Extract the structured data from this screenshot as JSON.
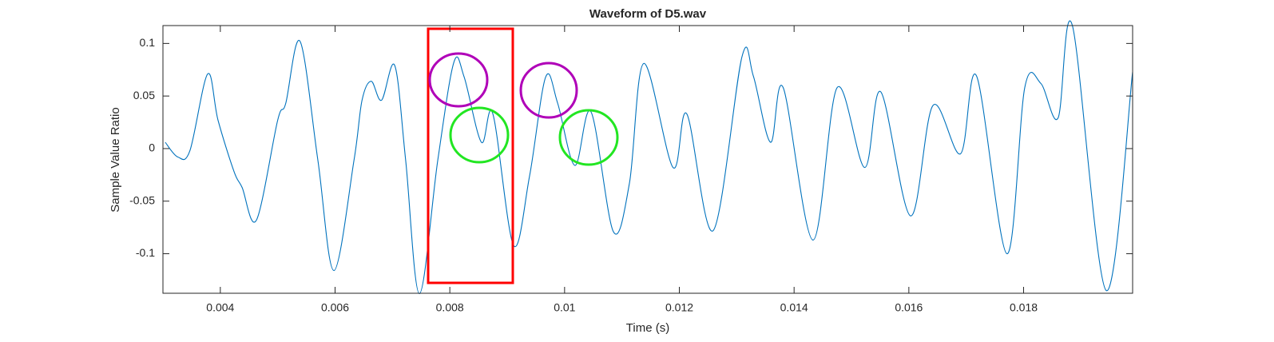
{
  "chart_data": {
    "type": "line",
    "title": "Waveform of D5.wav",
    "x_label": "Time (s)",
    "y_label": "Sample Value Ratio",
    "x": [
      0.00304,
      0.00326,
      0.00347,
      0.00378,
      0.00396,
      0.00424,
      0.00438,
      0.00463,
      0.005,
      0.00514,
      0.00539,
      0.0057,
      0.00598,
      0.00633,
      0.00647,
      0.00663,
      0.00681,
      0.00704,
      0.00723,
      0.00747,
      0.00779,
      0.00807,
      0.00825,
      0.00855,
      0.00875,
      0.00911,
      0.00939,
      0.00967,
      0.00988,
      0.01018,
      0.01046,
      0.01085,
      0.01113,
      0.01138,
      0.01189,
      0.01213,
      0.01259,
      0.01309,
      0.01329,
      0.01359,
      0.01381,
      0.01433,
      0.01475,
      0.01523,
      0.01551,
      0.01603,
      0.01642,
      0.0169,
      0.01718,
      0.01771,
      0.01802,
      0.0183,
      0.0186,
      0.01885,
      0.01944,
      0.0199
    ],
    "series": [
      {
        "name": "D5.wav",
        "color": "#0072BD",
        "values": [
          0.006,
          -0.008,
          -0.002,
          0.071,
          0.027,
          -0.022,
          -0.037,
          -0.068,
          0.027,
          0.043,
          0.102,
          -0.011,
          -0.116,
          -0.011,
          0.046,
          0.064,
          0.046,
          0.079,
          -0.011,
          -0.138,
          -0.011,
          0.082,
          0.068,
          0.006,
          0.033,
          -0.092,
          -0.026,
          0.068,
          0.043,
          -0.016,
          0.035,
          -0.079,
          -0.033,
          0.081,
          -0.018,
          0.033,
          -0.078,
          0.087,
          0.069,
          0.006,
          0.058,
          -0.087,
          0.058,
          -0.018,
          0.054,
          -0.064,
          0.041,
          -0.005,
          0.069,
          -0.1,
          0.058,
          0.062,
          0.029,
          0.117,
          -0.135,
          0.073
        ]
      }
    ],
    "xlim": [
      0.003,
      0.0199
    ],
    "ylim": [
      -0.1376,
      0.117
    ],
    "xticks": [
      0.004,
      0.006,
      0.008,
      0.01,
      0.012,
      0.014,
      0.016,
      0.018
    ],
    "yticks": [
      -0.1,
      -0.05,
      0,
      0.05,
      0.1
    ],
    "grid": false
  }
}
